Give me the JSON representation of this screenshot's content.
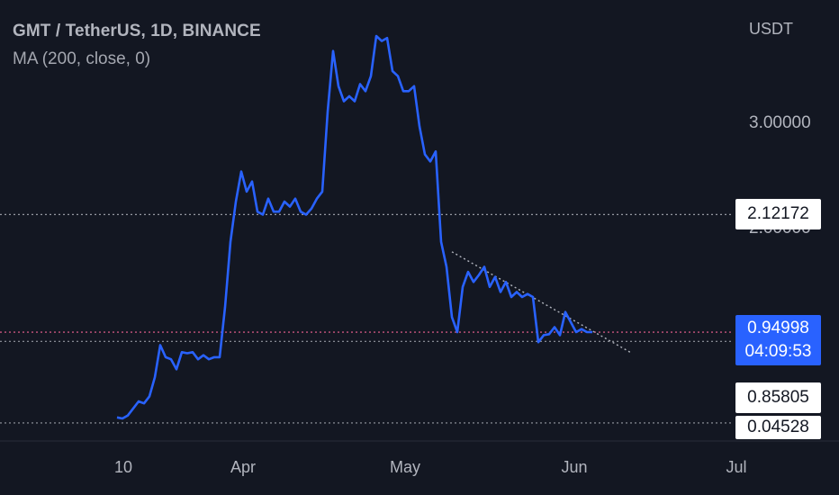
{
  "header": {
    "symbol": "GMT / TetherUS, 1D, BINANCE",
    "indicator": "MA (200, close, 0)"
  },
  "axis": {
    "unit": "USDT",
    "y_ticks": [
      "3.00000",
      "2.00000"
    ],
    "x_ticks": [
      "10",
      "Apr",
      "May",
      "Jun",
      "Jul"
    ]
  },
  "price_labels": {
    "level_high": "2.12172",
    "last_price": "0.94998",
    "countdown": "04:09:53",
    "level_mid": "0.85805",
    "level_low": "0.04528"
  },
  "colors": {
    "background": "#131722",
    "line": "#2962ff",
    "current_price_line": "#f06292",
    "guide_lines": "#9598a1"
  },
  "chart_data": {
    "type": "line",
    "title": "GMT / TetherUS, 1D, BINANCE",
    "xlabel": "",
    "ylabel": "USDT",
    "ylim": [
      0.0,
      3.9
    ],
    "grid": false,
    "series": [
      {
        "name": "GMT / TetherUS",
        "values": [
          0.1,
          0.09,
          0.12,
          0.19,
          0.26,
          0.24,
          0.31,
          0.5,
          0.82,
          0.7,
          0.68,
          0.58,
          0.75,
          0.74,
          0.75,
          0.68,
          0.72,
          0.68,
          0.7,
          0.7,
          1.2,
          1.85,
          2.25,
          2.55,
          2.35,
          2.45,
          2.15,
          2.12,
          2.28,
          2.15,
          2.15,
          2.25,
          2.2,
          2.28,
          2.15,
          2.12,
          2.18,
          2.28,
          2.35,
          3.15,
          3.75,
          3.4,
          3.25,
          3.3,
          3.25,
          3.42,
          3.35,
          3.5,
          3.9,
          3.85,
          3.88,
          3.55,
          3.5,
          3.35,
          3.35,
          3.4,
          3.0,
          2.72,
          2.65,
          2.75,
          1.85,
          1.6,
          1.1,
          0.95,
          1.4,
          1.55,
          1.45,
          1.52,
          1.6,
          1.4,
          1.5,
          1.35,
          1.45,
          1.3,
          1.35,
          1.3,
          1.33,
          1.3,
          0.85,
          0.92,
          0.93,
          1.0,
          0.92,
          1.15,
          1.05,
          0.95,
          0.98,
          0.95,
          0.94998
        ]
      }
    ],
    "trendline": {
      "start_index": 62,
      "start_value": 1.75,
      "end_index": 95,
      "end_value": 0.75
    },
    "horizontal_levels": [
      2.12172,
      0.94998,
      0.85805,
      0.04528
    ]
  }
}
